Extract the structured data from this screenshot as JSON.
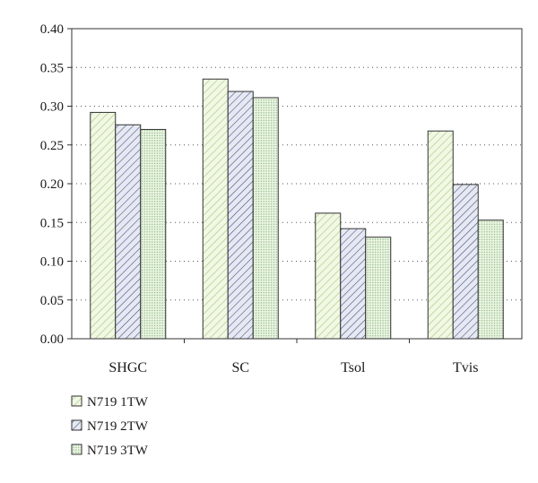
{
  "chart_data": {
    "type": "bar",
    "categories": [
      "SHGC",
      "SC",
      "Tsol",
      "Tvis"
    ],
    "series": [
      {
        "name": "N719 1TW",
        "values": [
          0.292,
          0.335,
          0.162,
          0.268
        ]
      },
      {
        "name": "N719 2TW",
        "values": [
          0.276,
          0.319,
          0.142,
          0.199
        ]
      },
      {
        "name": "N719 3TW",
        "values": [
          0.27,
          0.311,
          0.131,
          0.153
        ]
      }
    ],
    "ylim": [
      0,
      0.4
    ],
    "yticks": [
      "0.00",
      "0.05",
      "0.10",
      "0.15",
      "0.20",
      "0.25",
      "0.30",
      "0.35",
      "0.40"
    ],
    "grid": "horizontal dotted",
    "legend_position": "bottom-left",
    "colors": {
      "series_fill": [
        "#f2f8e4",
        "#e6e8f2",
        "#eef5e6"
      ],
      "series_hatch": [
        "#a8cf88",
        "#3c4a78",
        "#82b878"
      ],
      "axis": "#333333",
      "grid": "#555555",
      "bar_outline": "#333333"
    }
  }
}
